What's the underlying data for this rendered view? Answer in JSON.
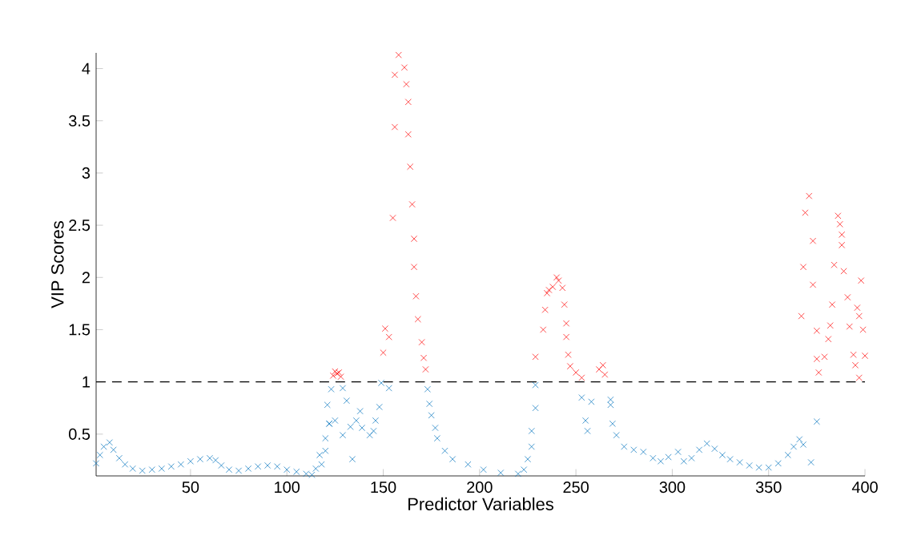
{
  "chart_data": {
    "type": "scatter",
    "xlabel": "Predictor Variables",
    "ylabel": "VIP Scores",
    "marker": "cross",
    "xlim": [
      1,
      400
    ],
    "ylim": [
      0.1,
      4.15
    ],
    "xticks": [
      50,
      100,
      150,
      200,
      250,
      300,
      350,
      400
    ],
    "yticks": [
      0.5,
      1,
      1.5,
      2,
      2.5,
      3,
      3.5,
      4
    ],
    "ref_lines": [
      {
        "axis": "y",
        "value": 1,
        "color": "#000000",
        "line_style": "dashed"
      }
    ],
    "series": [
      {
        "color": "#0072bd",
        "x": [
          1,
          3,
          5,
          8,
          10,
          13,
          16,
          20,
          25,
          30,
          35,
          40,
          45,
          50,
          55,
          60,
          63,
          66,
          70,
          75,
          80,
          85,
          90,
          95,
          100,
          105,
          110,
          113,
          115,
          117,
          118,
          120,
          120,
          121,
          122,
          122,
          123,
          125,
          129,
          129,
          131,
          133,
          134,
          136,
          138,
          139,
          143,
          145,
          146,
          148,
          149,
          153,
          173,
          174,
          175,
          177,
          178,
          182,
          186,
          194,
          202,
          211,
          220,
          223,
          225,
          227,
          227,
          229,
          229,
          253,
          255,
          256,
          258,
          268,
          268,
          269,
          271,
          275,
          280,
          285,
          290,
          294,
          298,
          303,
          306,
          310,
          314,
          318,
          322,
          326,
          330,
          335,
          340,
          345,
          350,
          355,
          360,
          363,
          366,
          368,
          372,
          375
        ],
        "values": [
          0.22,
          0.3,
          0.38,
          0.42,
          0.35,
          0.27,
          0.21,
          0.17,
          0.15,
          0.16,
          0.17,
          0.19,
          0.21,
          0.24,
          0.26,
          0.27,
          0.25,
          0.2,
          0.16,
          0.15,
          0.17,
          0.19,
          0.2,
          0.19,
          0.16,
          0.14,
          0.12,
          0.11,
          0.17,
          0.3,
          0.21,
          0.34,
          0.46,
          0.78,
          0.6,
          0.6,
          0.93,
          0.63,
          0.94,
          0.49,
          0.82,
          0.57,
          0.26,
          0.63,
          0.72,
          0.56,
          0.49,
          0.53,
          0.63,
          0.76,
          0.99,
          0.94,
          0.93,
          0.79,
          0.68,
          0.56,
          0.46,
          0.34,
          0.26,
          0.21,
          0.16,
          0.13,
          0.12,
          0.16,
          0.26,
          0.38,
          0.53,
          0.75,
          0.97,
          0.85,
          0.63,
          0.53,
          0.81,
          0.78,
          0.83,
          0.6,
          0.49,
          0.38,
          0.35,
          0.33,
          0.27,
          0.24,
          0.28,
          0.33,
          0.24,
          0.27,
          0.35,
          0.41,
          0.36,
          0.3,
          0.26,
          0.23,
          0.2,
          0.18,
          0.18,
          0.22,
          0.3,
          0.38,
          0.45,
          0.4,
          0.23,
          0.62
        ]
      },
      {
        "color": "#ff0000",
        "x": [
          124,
          125,
          126,
          127,
          128,
          150,
          151,
          153,
          155,
          156,
          156,
          158,
          161,
          162,
          163,
          163,
          164,
          165,
          166,
          166,
          167,
          168,
          170,
          171,
          172,
          229,
          233,
          234,
          235,
          236,
          238,
          240,
          241,
          243,
          244,
          245,
          245,
          246,
          247,
          250,
          253,
          262,
          264,
          265,
          367,
          368,
          369,
          371,
          373,
          373,
          375,
          375,
          376,
          379,
          381,
          382,
          383,
          384,
          386,
          387,
          388,
          388,
          389,
          391,
          392,
          394,
          395,
          396,
          397,
          397,
          398,
          399,
          400
        ],
        "values": [
          1.06,
          1.1,
          1.08,
          1.09,
          1.05,
          1.28,
          1.51,
          1.43,
          2.57,
          3.44,
          3.94,
          4.13,
          4.01,
          3.85,
          3.68,
          3.37,
          3.06,
          2.7,
          2.37,
          2.1,
          1.82,
          1.6,
          1.38,
          1.23,
          1.12,
          1.24,
          1.5,
          1.69,
          1.85,
          1.88,
          1.91,
          2.0,
          1.97,
          1.9,
          1.74,
          1.56,
          1.43,
          1.26,
          1.15,
          1.09,
          1.04,
          1.12,
          1.16,
          1.07,
          1.63,
          2.1,
          2.62,
          2.78,
          2.35,
          1.93,
          1.49,
          1.22,
          1.09,
          1.24,
          1.41,
          1.54,
          1.74,
          2.12,
          2.59,
          2.51,
          2.41,
          2.31,
          2.06,
          1.81,
          1.53,
          1.26,
          1.16,
          1.71,
          1.63,
          1.04,
          1.97,
          1.5,
          1.25
        ]
      }
    ]
  }
}
